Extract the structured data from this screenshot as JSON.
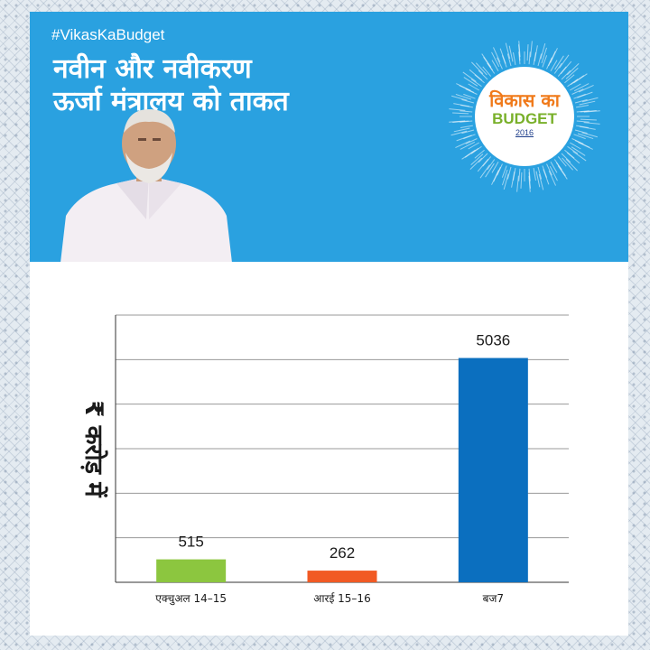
{
  "header": {
    "hashtag": "#VikasKaBudget",
    "title_line1": "नवीन और नवीकरण",
    "title_line2": "ऊर्जा मंत्रालय को ताकत"
  },
  "logo": {
    "line1": "विकास का",
    "line2": "BUDGET",
    "year": "2016"
  },
  "colors": {
    "header_bg": "#2aa1e0",
    "bar_green": "#8cc63f",
    "bar_orange": "#f15a24",
    "bar_blue": "#0b6fbf"
  },
  "icons": [
    "person-photo",
    "budget-logo-ring"
  ],
  "chart_data": {
    "type": "bar",
    "title": "",
    "xlabel": "",
    "ylabel": "₹ करोड़ में",
    "ylim": [
      0,
      6000
    ],
    "grid": true,
    "categories": [
      "एक्चुअल 14–15",
      "आरई 15–16",
      "बज7"
    ],
    "values": [
      515,
      262,
      5036
    ],
    "data_labels": [
      "515",
      "262",
      "5036"
    ],
    "bar_colors": [
      "#8cc63f",
      "#f15a24",
      "#0b6fbf"
    ]
  }
}
